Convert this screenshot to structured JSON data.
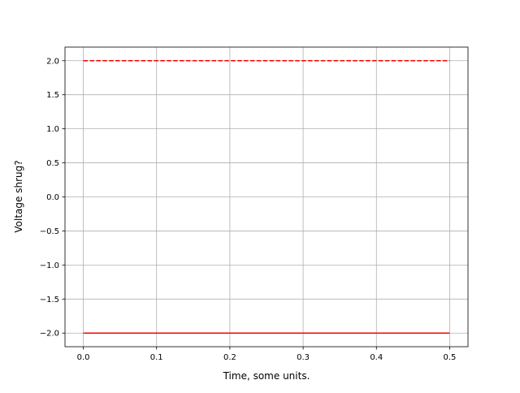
{
  "chart_data": {
    "type": "line",
    "title": "",
    "xlabel": "Time, some units.",
    "ylabel": "Voltage shrug?",
    "xlim": [
      -0.025,
      0.525
    ],
    "ylim": [
      -2.2,
      2.2
    ],
    "xticks": [
      0.0,
      0.1,
      0.2,
      0.3,
      0.4,
      0.5
    ],
    "xtick_labels": [
      "0.0",
      "0.1",
      "0.2",
      "0.3",
      "0.4",
      "0.5"
    ],
    "yticks": [
      -2.0,
      -1.5,
      -1.0,
      -0.5,
      0.0,
      0.5,
      1.0,
      1.5,
      2.0
    ],
    "ytick_labels": [
      "−2.0",
      "−1.5",
      "−1.0",
      "−0.5",
      "0.0",
      "0.5",
      "1.0",
      "1.5",
      "2.0"
    ],
    "grid": true,
    "series": [
      {
        "x": [
          0.0,
          0.5
        ],
        "y": [
          2.0,
          2.0
        ],
        "color": "#ff0000",
        "linestyle": "dashed"
      },
      {
        "x": [
          0.0,
          0.5
        ],
        "y": [
          -2.0,
          -2.0
        ],
        "color": "#ff0000",
        "linestyle": "solid"
      }
    ]
  }
}
